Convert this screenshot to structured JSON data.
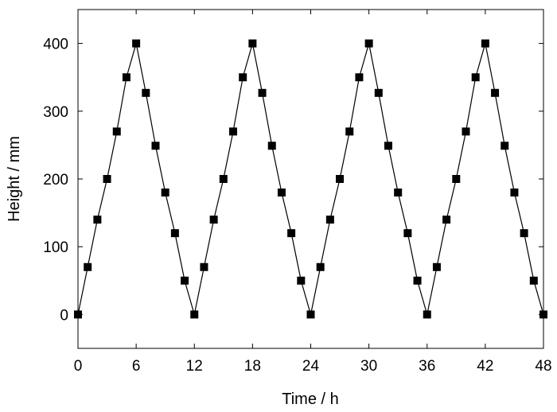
{
  "chart_data": {
    "type": "line",
    "title": "",
    "xlabel": "Time / h",
    "ylabel": "Height / mm",
    "xlim": [
      0,
      48
    ],
    "ylim": [
      -50,
      450
    ],
    "xticks": [
      0,
      6,
      12,
      18,
      24,
      30,
      36,
      42,
      48
    ],
    "yticks": [
      0,
      100,
      200,
      300,
      400
    ],
    "grid": false,
    "legend": "none",
    "marker": "square",
    "color": "#000000",
    "series": [
      {
        "x": [
          0,
          1,
          2,
          3,
          4,
          5,
          6,
          7,
          8,
          9,
          10,
          11,
          12,
          13,
          14,
          15,
          16,
          17,
          18,
          19,
          20,
          21,
          22,
          23,
          24,
          25,
          26,
          27,
          28,
          29,
          30,
          31,
          32,
          33,
          34,
          35,
          36,
          37,
          38,
          39,
          40,
          41,
          42,
          43,
          44,
          45,
          46,
          47,
          48
        ],
        "y": [
          0,
          70,
          140,
          200,
          270,
          350,
          400,
          327,
          249,
          180,
          120,
          50,
          0,
          70,
          140,
          200,
          270,
          350,
          400,
          327,
          249,
          180,
          120,
          50,
          0,
          70,
          140,
          200,
          270,
          350,
          400,
          327,
          249,
          180,
          120,
          50,
          0,
          70,
          140,
          200,
          270,
          350,
          400,
          327,
          249,
          180,
          120,
          50,
          0
        ]
      }
    ]
  }
}
